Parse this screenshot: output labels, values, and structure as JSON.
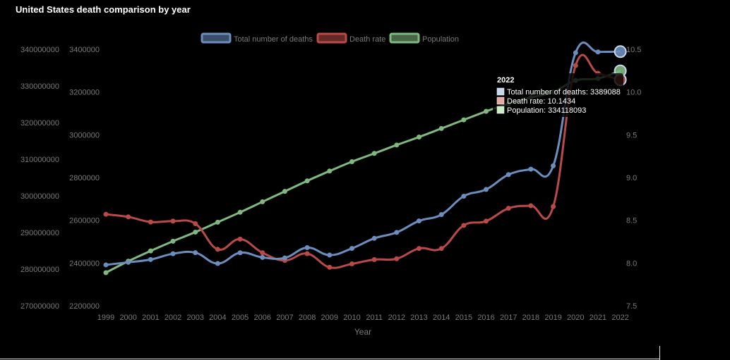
{
  "title": "United States death comparison by year",
  "chart_data": {
    "type": "line",
    "title": "United States death comparison by year",
    "xlabel": "Year",
    "x": [
      "1999",
      "2000",
      "2001",
      "2002",
      "2003",
      "2004",
      "2005",
      "2006",
      "2007",
      "2008",
      "2009",
      "2010",
      "2011",
      "2012",
      "2013",
      "2014",
      "2015",
      "2016",
      "2017",
      "2018",
      "2019",
      "2020",
      "2021",
      "2022"
    ],
    "axes": {
      "population": {
        "ylim": [
          270000000,
          340000000
        ],
        "ticks": [
          "340000000",
          "330000000",
          "320000000",
          "310000000",
          "300000000",
          "290000000",
          "280000000",
          "270000000"
        ]
      },
      "deaths": {
        "ylim": [
          2200000,
          3400000
        ],
        "ticks": [
          "3400000",
          "3200000",
          "3000000",
          "2800000",
          "2600000",
          "2400000",
          "2200000"
        ]
      },
      "rate": {
        "ylim": [
          7.5,
          10.5
        ],
        "ticks": [
          "10.5",
          "10.0",
          "9.5",
          "9.0",
          "8.5",
          "8.0",
          "7.5"
        ]
      }
    },
    "series": [
      {
        "name": "Total number of deaths",
        "axis": "deaths",
        "color": "#6c8ebf",
        "values": [
          2391399,
          2403351,
          2416425,
          2443387,
          2448288,
          2397615,
          2448017,
          2426264,
          2423712,
          2471984,
          2437163,
          2468435,
          2515458,
          2543279,
          2596993,
          2626418,
          2712630,
          2744248,
          2813503,
          2839205,
          2854838,
          3383729,
          3387658,
          3389088
        ]
      },
      {
        "name": "Death rate",
        "axis": "rate",
        "color": "#b94a48",
        "values": [
          8.57,
          8.54,
          8.48,
          8.49,
          8.46,
          8.16,
          8.28,
          8.12,
          8.03,
          8.11,
          7.95,
          7.99,
          8.04,
          8.05,
          8.17,
          8.17,
          8.44,
          8.49,
          8.64,
          8.67,
          8.66,
          10.31,
          10.22,
          10.1434
        ]
      },
      {
        "name": "Population",
        "axis": "population",
        "color": "#7fb97f",
        "values": [
          279040000,
          282162000,
          284969000,
          287625000,
          290108000,
          292805000,
          295517000,
          298380000,
          301231000,
          304094000,
          306772000,
          309327000,
          311583000,
          313878000,
          316060000,
          318386000,
          320739000,
          323071000,
          325122000,
          326838000,
          328330000,
          331501000,
          332031000,
          334118093
        ]
      }
    ],
    "legend_position": "top",
    "tooltip": {
      "title": "2022",
      "lines": [
        "Total number of deaths: 3389088",
        "Death rate: 10.1434",
        "Population: 334118093"
      ]
    }
  }
}
